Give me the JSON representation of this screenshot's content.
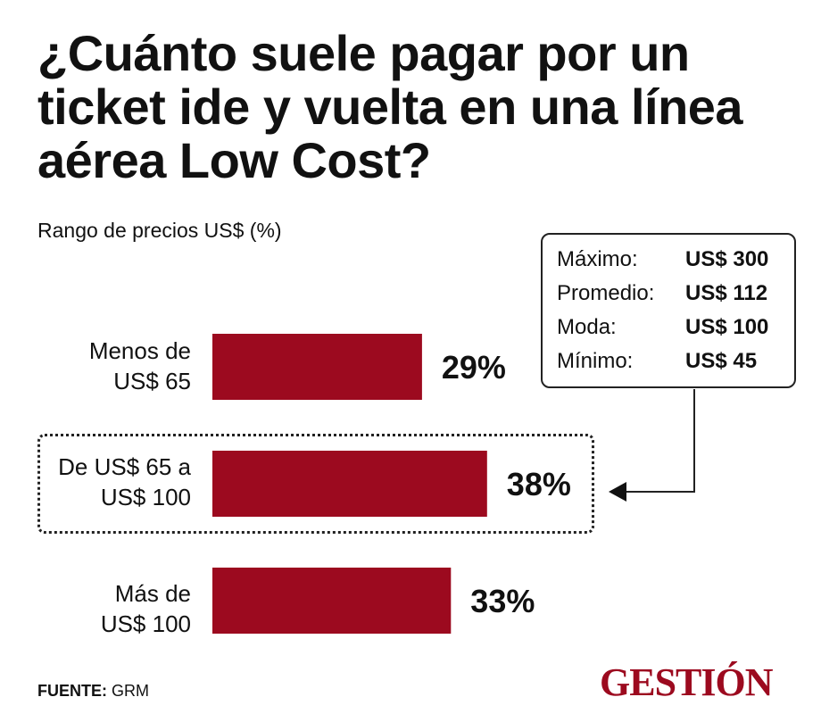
{
  "title": "¿Cuánto suele pagar por un ticket ide y vuelta en una línea aérea Low Cost?",
  "subtitle": "Rango de precios US$ (%)",
  "stats": [
    {
      "label": "Máximo:",
      "value": "US$ 300"
    },
    {
      "label": "Promedio:",
      "value": "US$ 112"
    },
    {
      "label": "Moda:",
      "value": "US$ 100"
    },
    {
      "label": "Mínimo:",
      "value": "US$ 45"
    }
  ],
  "chart_data": {
    "type": "bar",
    "orientation": "horizontal",
    "categories": [
      [
        "Menos de",
        "US$ 65"
      ],
      [
        "De US$ 65 a",
        "US$ 100"
      ],
      [
        "Más de",
        "US$ 100"
      ]
    ],
    "values": [
      29,
      38,
      33
    ],
    "value_labels": [
      "29%",
      "38%",
      "33%"
    ],
    "title": "¿Cuánto suele pagar por un ticket ide y vuelta en una línea aérea Low Cost?",
    "subtitle": "Rango de precios US$ (%)",
    "highlighted_category_index": 1,
    "bar_color": "#9c0a1f",
    "grid": false
  },
  "footer": {
    "source_label": "FUENTE:",
    "source_value": "GRM"
  },
  "logo": "GESTIÓN",
  "colors": {
    "accent": "#9c0a1f",
    "text": "#111111"
  }
}
